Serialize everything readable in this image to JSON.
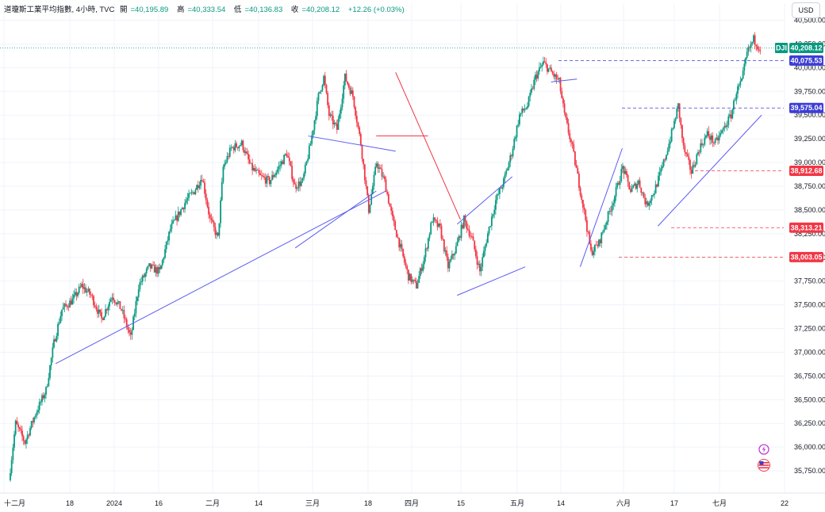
{
  "header": {
    "symbol": "道瓊斯工業平均指數, 4小時, TVC",
    "open_label": "開",
    "open": "=40,195.89",
    "high_label": "高",
    "high": "=40,333.54",
    "low_label": "低",
    "low": "=40,136.83",
    "close_label": "收",
    "close": "=40,208.12",
    "change": "+12.26 (+0.03%)"
  },
  "currency": "USD",
  "colors": {
    "up": "#089981",
    "down": "#f23645",
    "trendline": "#5b5cf0",
    "price_label": "#089981",
    "blue_label": "#3d3dd6",
    "red_label": "#f23645"
  },
  "icons": [
    "lightning-icon",
    "us-flag-icon"
  ],
  "chart_data": {
    "type": "candlestick",
    "title": "道瓊斯工業平均指數, 4小時, TVC",
    "x_tick_labels": [
      "十二月",
      "18",
      "2024",
      "16",
      "二月",
      "14",
      "三月",
      "18",
      "四月",
      "15",
      "五月",
      "14",
      "六月",
      "17",
      "七月",
      "22"
    ],
    "y_tick_labels": [
      "40,500.00",
      "40,250.00",
      "40,000.00",
      "39,750.00",
      "39,500.00",
      "39,250.00",
      "39,000.00",
      "38,750.00",
      "38,500.00",
      "38,250.00",
      "38,000.00",
      "37,750.00",
      "37,500.00",
      "37,250.00",
      "37,000.00",
      "36,750.00",
      "36,500.00",
      "36,250.00",
      "36,000.00",
      "35,750.00"
    ],
    "ylim": [
      35600,
      40680
    ],
    "price_labels": [
      {
        "symbol": "DJI",
        "value": "40,208.12",
        "kind": "last"
      },
      {
        "value": "40,075.53",
        "kind": "blue"
      },
      {
        "value": "39,575.04",
        "kind": "blue"
      },
      {
        "value": "38,912.68",
        "kind": "red"
      },
      {
        "value": "38,313.21",
        "kind": "red"
      },
      {
        "value": "38,003.05",
        "kind": "red"
      }
    ],
    "path_points": [
      [
        0,
        35650
      ],
      [
        5,
        36250
      ],
      [
        12,
        36050
      ],
      [
        20,
        36350
      ],
      [
        28,
        36600
      ],
      [
        34,
        37100
      ],
      [
        40,
        37450
      ],
      [
        48,
        37550
      ],
      [
        55,
        37700
      ],
      [
        62,
        37600
      ],
      [
        70,
        37350
      ],
      [
        78,
        37600
      ],
      [
        85,
        37450
      ],
      [
        92,
        37150
      ],
      [
        98,
        37700
      ],
      [
        106,
        37900
      ],
      [
        114,
        37850
      ],
      [
        122,
        38300
      ],
      [
        128,
        38450
      ],
      [
        134,
        38600
      ],
      [
        140,
        38700
      ],
      [
        146,
        38850
      ],
      [
        152,
        38400
      ],
      [
        158,
        38200
      ],
      [
        162,
        38950
      ],
      [
        168,
        39150
      ],
      [
        176,
        39200
      ],
      [
        183,
        38950
      ],
      [
        190,
        38850
      ],
      [
        197,
        38800
      ],
      [
        204,
        38950
      ],
      [
        210,
        39100
      ],
      [
        216,
        38750
      ],
      [
        222,
        38800
      ],
      [
        228,
        39200
      ],
      [
        234,
        39700
      ],
      [
        238,
        39900
      ],
      [
        242,
        39500
      ],
      [
        248,
        39350
      ],
      [
        254,
        39900
      ],
      [
        260,
        39700
      ],
      [
        266,
        39200
      ],
      [
        272,
        38500
      ],
      [
        278,
        39000
      ],
      [
        284,
        38800
      ],
      [
        290,
        38400
      ],
      [
        296,
        38100
      ],
      [
        302,
        37800
      ],
      [
        308,
        37700
      ],
      [
        314,
        38000
      ],
      [
        320,
        38400
      ],
      [
        326,
        38300
      ],
      [
        332,
        37900
      ],
      [
        338,
        38100
      ],
      [
        344,
        38400
      ],
      [
        350,
        38200
      ],
      [
        356,
        37850
      ],
      [
        362,
        38250
      ],
      [
        368,
        38600
      ],
      [
        374,
        38800
      ],
      [
        380,
        39100
      ],
      [
        386,
        39500
      ],
      [
        392,
        39600
      ],
      [
        398,
        39900
      ],
      [
        404,
        40050
      ],
      [
        410,
        39950
      ],
      [
        416,
        39850
      ],
      [
        420,
        39500
      ],
      [
        426,
        39150
      ],
      [
        432,
        38700
      ],
      [
        436,
        38400
      ],
      [
        440,
        38050
      ],
      [
        446,
        38150
      ],
      [
        452,
        38400
      ],
      [
        458,
        38650
      ],
      [
        464,
        38950
      ],
      [
        470,
        38700
      ],
      [
        476,
        38800
      ],
      [
        482,
        38550
      ],
      [
        488,
        38700
      ],
      [
        494,
        38950
      ],
      [
        500,
        39250
      ],
      [
        506,
        39600
      ],
      [
        510,
        39150
      ],
      [
        516,
        38900
      ],
      [
        522,
        39150
      ],
      [
        528,
        39300
      ],
      [
        534,
        39200
      ],
      [
        540,
        39350
      ],
      [
        546,
        39500
      ],
      [
        550,
        39750
      ],
      [
        554,
        39850
      ],
      [
        558,
        40150
      ],
      [
        563,
        40300
      ],
      [
        568,
        40200
      ]
    ],
    "trendlines": [
      {
        "from": [
          "2023-12-14",
          36880
        ],
        "to": [
          "2024-03-25",
          38700
        ]
      },
      {
        "from": [
          "2024-02-26",
          38100
        ],
        "to": [
          "2024-03-22",
          38700
        ]
      },
      {
        "from": [
          "2024-03-01",
          39280
        ],
        "to": [
          "2024-03-28",
          39120
        ]
      },
      {
        "from": [
          "2024-03-28",
          39950
        ],
        "to": [
          "2024-04-17",
          38400
        ]
      },
      {
        "from": [
          "2024-03-22",
          39280
        ],
        "to": [
          "2024-04-07",
          39280
        ]
      },
      {
        "from": [
          "2024-04-16",
          38350
        ],
        "to": [
          "2024-05-03",
          38850
        ]
      },
      {
        "from": [
          "2024-04-16",
          37600
        ],
        "to": [
          "2024-05-07",
          37900
        ]
      },
      {
        "from": [
          "2024-05-24",
          37900
        ],
        "to": [
          "2024-06-06",
          39150
        ]
      },
      {
        "from": [
          "2024-06-17",
          38330
        ],
        "to": [
          "2024-07-19",
          39500
        ]
      },
      {
        "from": [
          "2024-05-15",
          39850
        ],
        "to": [
          "2024-05-23",
          39880
        ]
      }
    ],
    "grid": true
  }
}
